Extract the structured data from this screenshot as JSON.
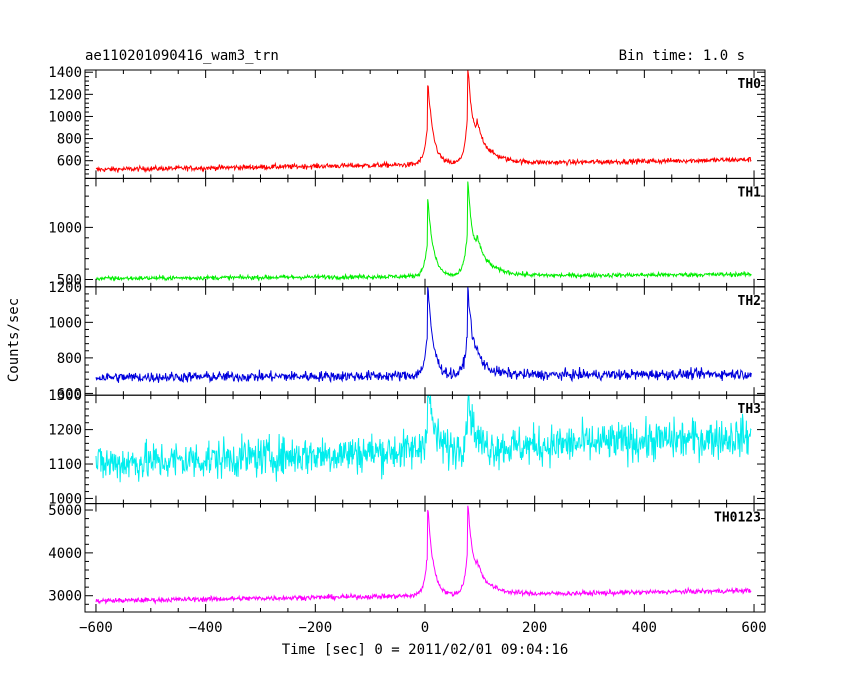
{
  "chart_data": {
    "type": "line",
    "title": "ae110201090416_wam3_trn",
    "subtitle": "Bin time: 1.0 s",
    "xlabel": "Time [sec] 0 = 2011/02/01 09:04:16",
    "ylabel": "Counts/sec",
    "xlim": [
      -620,
      620
    ],
    "xticks": [
      -600,
      -400,
      -200,
      0,
      200,
      400,
      600
    ],
    "panels": [
      {
        "name": "TH0",
        "color": "#ff0000",
        "ylim": [
          440,
          1420
        ],
        "yticks": [
          600,
          800,
          1000,
          1200,
          1400
        ],
        "baseline_start": 520,
        "baseline_end": 610,
        "noise": 22,
        "peaks": [
          {
            "x": 5,
            "value": 1280
          },
          {
            "x": 78,
            "value": 1420
          },
          {
            "x": 95,
            "value": 900
          }
        ]
      },
      {
        "name": "TH1",
        "color": "#00ee00",
        "ylim": [
          430,
          1470
        ],
        "yticks": [
          500,
          1000
        ],
        "baseline_start": 510,
        "baseline_end": 550,
        "noise": 20,
        "peaks": [
          {
            "x": 5,
            "value": 1270
          },
          {
            "x": 78,
            "value": 1440
          },
          {
            "x": 95,
            "value": 880
          }
        ]
      },
      {
        "name": "TH2",
        "color": "#0000dd",
        "ylim": [
          590,
          1200
        ],
        "yticks": [
          600,
          800,
          1000,
          1200
        ],
        "baseline_start": 690,
        "baseline_end": 710,
        "noise": 28,
        "peaks": [
          {
            "x": 5,
            "value": 1200
          },
          {
            "x": 78,
            "value": 1200
          },
          {
            "x": 95,
            "value": 790
          }
        ]
      },
      {
        "name": "TH3",
        "color": "#00eeee",
        "ylim": [
          985,
          1300
        ],
        "yticks": [
          1000,
          1100,
          1200,
          1300
        ],
        "baseline_start": 1100,
        "baseline_end": 1180,
        "noise": 55,
        "peaks": [
          {
            "x": 5,
            "value": 1300
          },
          {
            "x": 78,
            "value": 1280
          }
        ]
      },
      {
        "name": "TH0123",
        "color": "#ff00ff",
        "ylim": [
          2620,
          5150
        ],
        "yticks": [
          3000,
          4000,
          5000
        ],
        "baseline_start": 2880,
        "baseline_end": 3120,
        "noise": 55,
        "peaks": [
          {
            "x": 5,
            "value": 5000
          },
          {
            "x": 78,
            "value": 5100
          },
          {
            "x": 95,
            "value": 3600
          }
        ]
      }
    ]
  }
}
